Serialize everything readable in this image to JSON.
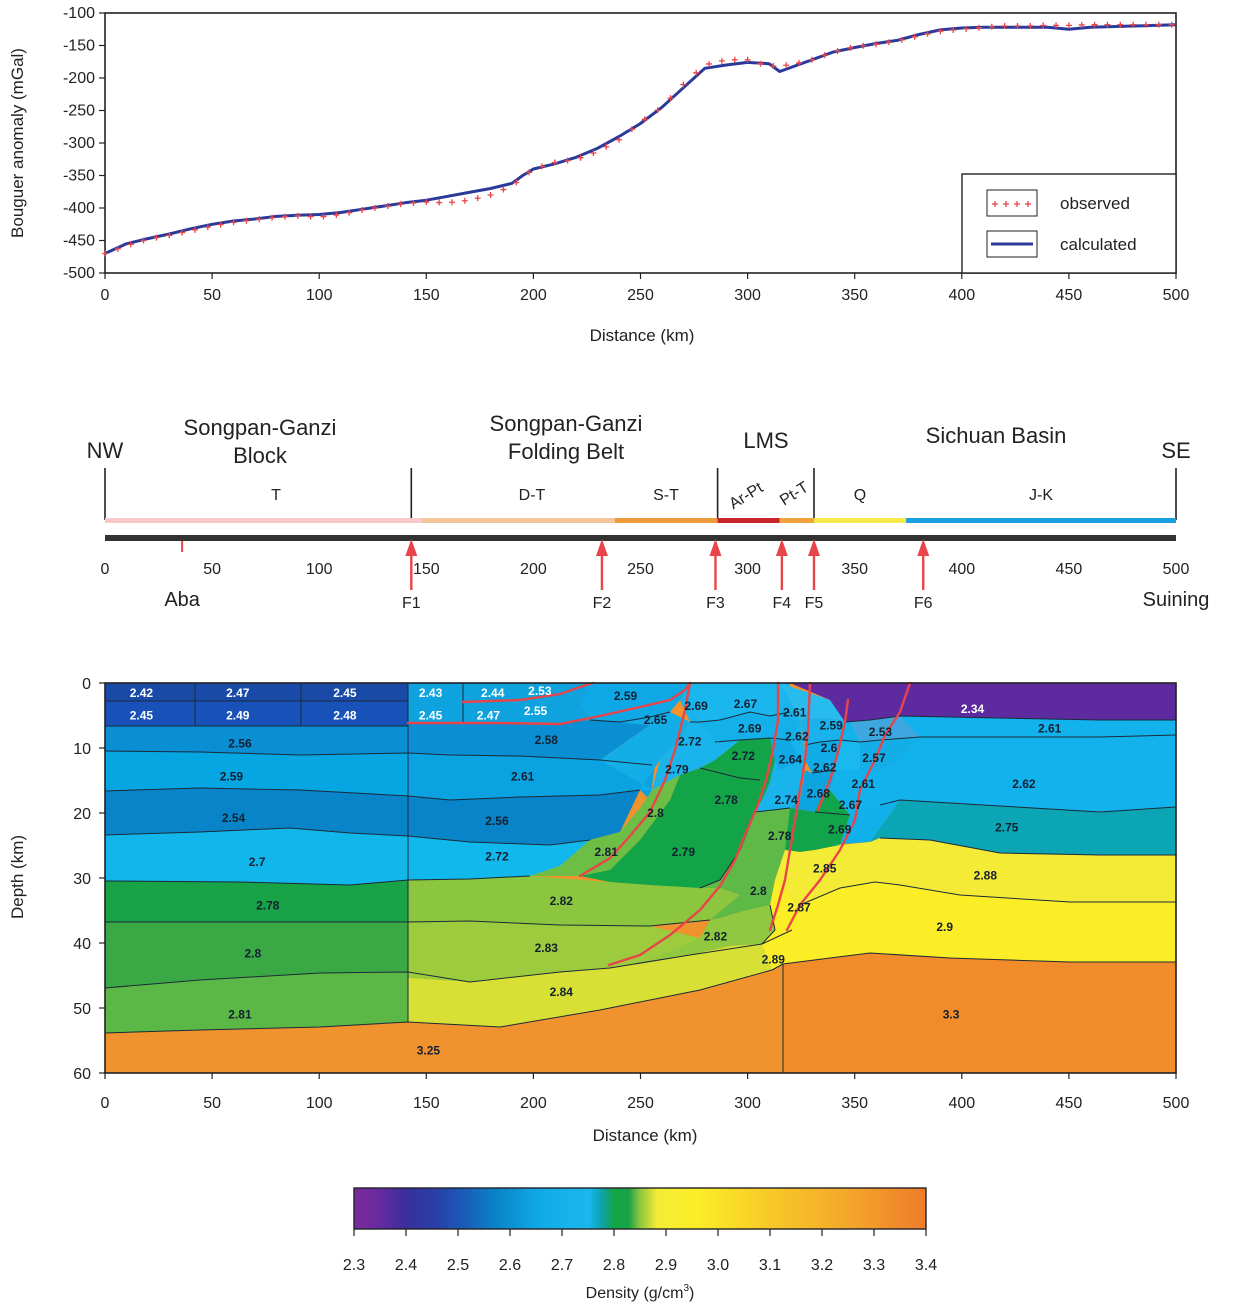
{
  "chart_data": [
    {
      "type": "line",
      "ylabel": "Bouguer anomaly (mGal)",
      "xlabel": "Distance (km)",
      "xlim": [
        0,
        500
      ],
      "ylim": [
        -500,
        -100
      ],
      "xticks": [
        "0",
        "50",
        "100",
        "150",
        "200",
        "250",
        "300",
        "350",
        "400",
        "450",
        "500"
      ],
      "yticks": [
        "-100",
        "-150",
        "-200",
        "-250",
        "-300",
        "-350",
        "-400",
        "-450",
        "-500"
      ],
      "legend_position": "bottom-right",
      "series": [
        {
          "name": "observed",
          "marker": "plus",
          "color": "#e8454a",
          "x": [
            0,
            10,
            20,
            30,
            40,
            50,
            60,
            70,
            80,
            90,
            100,
            110,
            120,
            130,
            140,
            150,
            160,
            170,
            180,
            190,
            200,
            210,
            220,
            230,
            240,
            250,
            260,
            270,
            280,
            290,
            300,
            310,
            320,
            330,
            340,
            350,
            360,
            370,
            380,
            390,
            400,
            410,
            420,
            430,
            440,
            450,
            460,
            470,
            480,
            490,
            500
          ],
          "y": [
            -470,
            -458,
            -448,
            -442,
            -435,
            -428,
            -422,
            -418,
            -414,
            -412,
            -414,
            -410,
            -403,
            -398,
            -393,
            -391,
            -392,
            -388,
            -380,
            -366,
            -340,
            -330,
            -325,
            -313,
            -295,
            -268,
            -245,
            -210,
            -180,
            -172,
            -172,
            -182,
            -180,
            -172,
            -160,
            -152,
            -148,
            -143,
            -135,
            -128,
            -125,
            -122,
            -120,
            -120,
            -119,
            -119,
            -118,
            -118,
            -118,
            -118,
            -118
          ]
        },
        {
          "name": "calculated",
          "marker": "line",
          "color": "#2b3a9a",
          "x": [
            0,
            10,
            20,
            30,
            40,
            50,
            60,
            70,
            80,
            90,
            100,
            110,
            120,
            130,
            140,
            150,
            160,
            170,
            180,
            190,
            195,
            200,
            210,
            220,
            230,
            240,
            250,
            260,
            270,
            275,
            280,
            290,
            300,
            310,
            315,
            320,
            330,
            340,
            350,
            360,
            370,
            380,
            390,
            400,
            410,
            420,
            430,
            440,
            450,
            460,
            470,
            480,
            490,
            500
          ],
          "y": [
            -470,
            -455,
            -447,
            -440,
            -432,
            -425,
            -420,
            -417,
            -413,
            -411,
            -410,
            -407,
            -402,
            -397,
            -392,
            -388,
            -382,
            -376,
            -370,
            -362,
            -350,
            -340,
            -332,
            -322,
            -308,
            -290,
            -270,
            -245,
            -215,
            -200,
            -185,
            -180,
            -176,
            -178,
            -190,
            -184,
            -172,
            -160,
            -153,
            -147,
            -142,
            -133,
            -126,
            -123,
            -122,
            -122,
            -122,
            -122,
            -125,
            -122,
            -121,
            -120,
            -119,
            -118
          ]
        }
      ]
    },
    {
      "type": "table",
      "x": [
        "0",
        "50",
        "100",
        "150",
        "200",
        "250",
        "300",
        "350",
        "400",
        "450",
        "500"
      ],
      "ends": {
        "left": "NW",
        "right": "SE"
      },
      "regions": [
        {
          "name": "Songpan-Ganzi",
          "name2": "Block"
        },
        {
          "name": "Songpan-Ganzi",
          "name2": "Folding Belt"
        },
        {
          "name": "LMS",
          "name2": ""
        },
        {
          "name": "Sichuan Basin",
          "name2": ""
        }
      ],
      "strata": [
        {
          "label": "T",
          "from": 0,
          "to": 148,
          "color": "#f8c9c8"
        },
        {
          "label": "D-T",
          "from": 148,
          "to": 238,
          "color": "#f4c49a"
        },
        {
          "label": "S-T",
          "from": 238,
          "to": 286,
          "color": "#ec9a3a"
        },
        {
          "label": "Ar-Pt",
          "from": 286,
          "to": 315,
          "color": "#c8242c"
        },
        {
          "label": "Pt-T",
          "from": 315,
          "to": 331,
          "color": "#eea33c"
        },
        {
          "label": "Q",
          "from": 331,
          "to": 374,
          "color": "#f6ea4a"
        },
        {
          "label": "J-K",
          "from": 374,
          "to": 500,
          "color": "#1aa0e0"
        }
      ],
      "sites": [
        {
          "name": "Aba",
          "x": 36
        },
        {
          "name": "Suining",
          "x": 500
        }
      ],
      "faults": [
        {
          "name": "F1",
          "x": 143
        },
        {
          "name": "F2",
          "x": 232
        },
        {
          "name": "F3",
          "x": 285
        },
        {
          "name": "F4",
          "x": 316
        },
        {
          "name": "F5",
          "x": 331
        },
        {
          "name": "F6",
          "x": 382
        }
      ]
    },
    {
      "type": "heatmap",
      "xlabel": "Distance (km)",
      "ylabel": "Depth (km)",
      "xlim": [
        0,
        500
      ],
      "ylim": [
        0,
        60
      ],
      "xticks": [
        "0",
        "50",
        "100",
        "150",
        "200",
        "250",
        "300",
        "350",
        "400",
        "450",
        "500"
      ],
      "yticks": [
        "0",
        "10",
        "20",
        "30",
        "40",
        "50",
        "60"
      ],
      "density_labels": [
        {
          "v": "2.42",
          "x": 17,
          "y": 1.5
        },
        {
          "v": "2.47",
          "x": 62,
          "y": 1.5
        },
        {
          "v": "2.45",
          "x": 112,
          "y": 1.5
        },
        {
          "v": "2.43",
          "x": 152,
          "y": 1.5
        },
        {
          "v": "2.44",
          "x": 181,
          "y": 1.5
        },
        {
          "v": "2.53",
          "x": 203,
          "y": 1.2
        },
        {
          "v": "2.59",
          "x": 243,
          "y": 2
        },
        {
          "v": "2.45",
          "x": 17,
          "y": 5
        },
        {
          "v": "2.49",
          "x": 62,
          "y": 5
        },
        {
          "v": "2.48",
          "x": 112,
          "y": 5
        },
        {
          "v": "2.45",
          "x": 152,
          "y": 5
        },
        {
          "v": "2.47",
          "x": 179,
          "y": 5
        },
        {
          "v": "2.55",
          "x": 201,
          "y": 4.3
        },
        {
          "v": "2.65",
          "x": 257,
          "y": 5.7
        },
        {
          "v": "2.69",
          "x": 276,
          "y": 3.5
        },
        {
          "v": "2.67",
          "x": 299,
          "y": 3.2
        },
        {
          "v": "2.61",
          "x": 322,
          "y": 4.5
        },
        {
          "v": "2.34",
          "x": 405,
          "y": 4
        },
        {
          "v": "2.56",
          "x": 63,
          "y": 9.3
        },
        {
          "v": "2.58",
          "x": 206,
          "y": 8.8
        },
        {
          "v": "2.72",
          "x": 273,
          "y": 9
        },
        {
          "v": "2.69",
          "x": 301,
          "y": 7
        },
        {
          "v": "2.62",
          "x": 323,
          "y": 8.2
        },
        {
          "v": "2.59",
          "x": 339,
          "y": 6.5
        },
        {
          "v": "2.53",
          "x": 362,
          "y": 7.5
        },
        {
          "v": "2.61",
          "x": 441,
          "y": 7
        },
        {
          "v": "2.59",
          "x": 59,
          "y": 14.4
        },
        {
          "v": "2.61",
          "x": 195,
          "y": 14.4
        },
        {
          "v": "2.79",
          "x": 267,
          "y": 13.3
        },
        {
          "v": "2.72",
          "x": 298,
          "y": 11.2
        },
        {
          "v": "2.64",
          "x": 320,
          "y": 11.8
        },
        {
          "v": "2.6",
          "x": 338,
          "y": 10
        },
        {
          "v": "2.62",
          "x": 336,
          "y": 13
        },
        {
          "v": "2.57",
          "x": 359,
          "y": 11.5
        },
        {
          "v": "2.62",
          "x": 429,
          "y": 15.5
        },
        {
          "v": "2.54",
          "x": 60,
          "y": 20.8
        },
        {
          "v": "2.56",
          "x": 183,
          "y": 21.2
        },
        {
          "v": "2.8",
          "x": 257,
          "y": 20
        },
        {
          "v": "2.78",
          "x": 290,
          "y": 18
        },
        {
          "v": "2.74",
          "x": 318,
          "y": 18
        },
        {
          "v": "2.68",
          "x": 333,
          "y": 17
        },
        {
          "v": "2.61",
          "x": 354,
          "y": 15.5
        },
        {
          "v": "2.67",
          "x": 348,
          "y": 18.8
        },
        {
          "v": "2.75",
          "x": 421,
          "y": 22.2
        },
        {
          "v": "2.7",
          "x": 71,
          "y": 27.5
        },
        {
          "v": "2.72",
          "x": 183,
          "y": 26.7
        },
        {
          "v": "2.81",
          "x": 234,
          "y": 26
        },
        {
          "v": "2.79",
          "x": 270,
          "y": 26
        },
        {
          "v": "2.78",
          "x": 315,
          "y": 23.5
        },
        {
          "v": "2.69",
          "x": 343,
          "y": 22.5
        },
        {
          "v": "2.85",
          "x": 336,
          "y": 28.5
        },
        {
          "v": "2.88",
          "x": 411,
          "y": 29.6
        },
        {
          "v": "2.78",
          "x": 76,
          "y": 34.2
        },
        {
          "v": "2.82",
          "x": 213,
          "y": 33.5
        },
        {
          "v": "2.8",
          "x": 305,
          "y": 32
        },
        {
          "v": "2.87",
          "x": 324,
          "y": 34.5
        },
        {
          "v": "2.9",
          "x": 392,
          "y": 37.5
        },
        {
          "v": "2.8",
          "x": 69,
          "y": 41.6
        },
        {
          "v": "2.83",
          "x": 206,
          "y": 40.8
        },
        {
          "v": "2.82",
          "x": 285,
          "y": 39
        },
        {
          "v": "2.89",
          "x": 312,
          "y": 42.5
        },
        {
          "v": "2.81",
          "x": 63,
          "y": 51
        },
        {
          "v": "2.84",
          "x": 213,
          "y": 47.5
        },
        {
          "v": "3.3",
          "x": 395,
          "y": 51
        },
        {
          "v": "3.25",
          "x": 151,
          "y": 56.5
        }
      ]
    },
    {
      "type": "colorbar",
      "label": "Density (g/cm",
      "label_sup": "3",
      "label_end": ")",
      "ticks": [
        "2.3",
        "2.4",
        "2.5",
        "2.6",
        "2.7",
        "2.8",
        "2.9",
        "3.0",
        "3.1",
        "3.2",
        "3.3",
        "3.4"
      ]
    }
  ]
}
